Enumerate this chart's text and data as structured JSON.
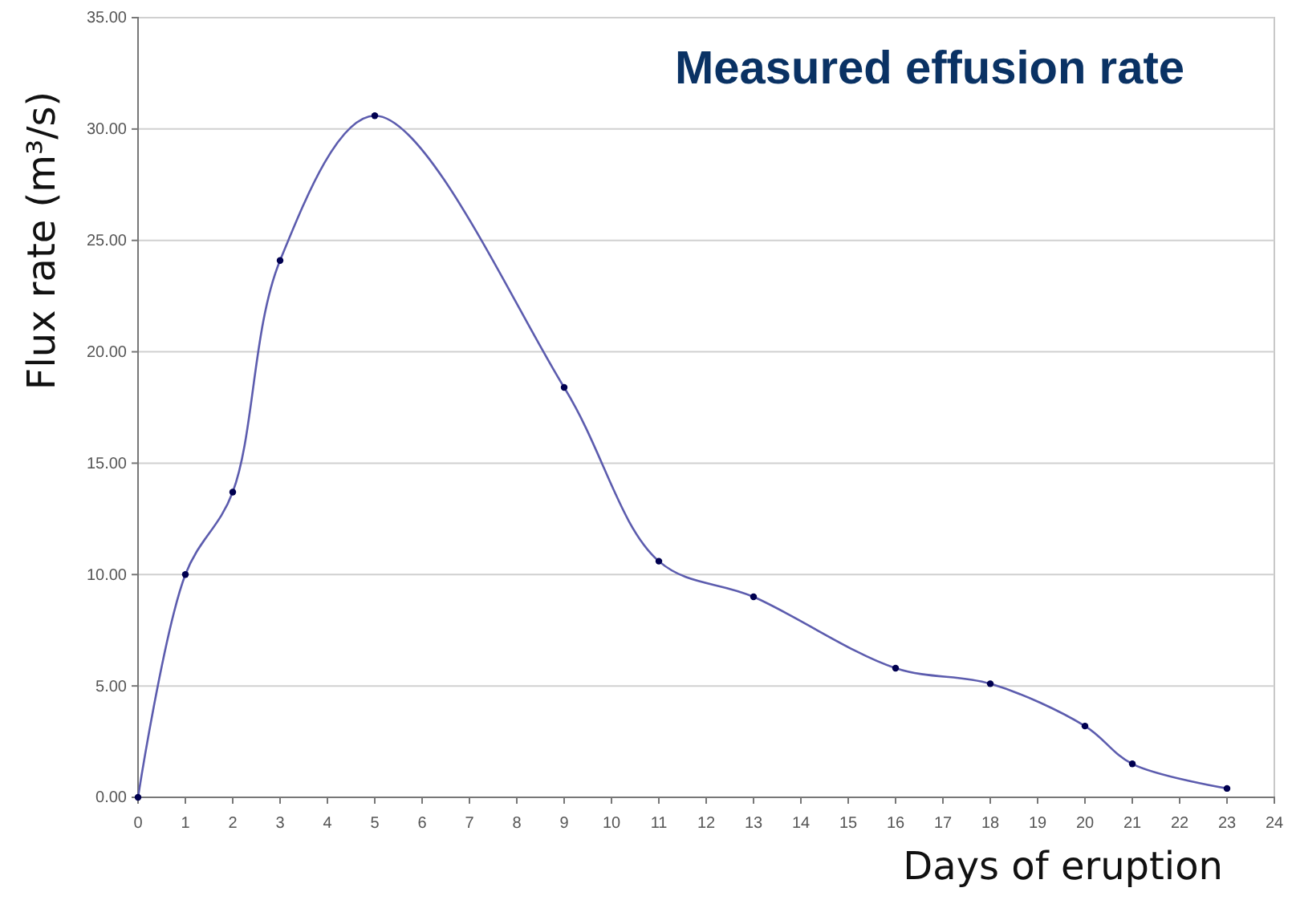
{
  "chart_data": {
    "type": "line",
    "title": "Measured effusion rate",
    "xlabel": "Days of eruption",
    "ylabel": "Flux rate (m³/s)",
    "x": [
      0,
      1,
      2,
      3,
      5,
      9,
      11,
      13,
      16,
      18,
      20,
      21,
      23
    ],
    "series": [
      {
        "color": "#5c5cae",
        "values": [
          0,
          10.0,
          13.7,
          24.1,
          30.6,
          18.4,
          10.6,
          9.0,
          5.8,
          5.1,
          3.2,
          1.5,
          0.4
        ]
      }
    ],
    "xlim": [
      0,
      24
    ],
    "xticks": [
      0,
      1,
      2,
      3,
      4,
      5,
      6,
      7,
      8,
      9,
      10,
      11,
      12,
      13,
      14,
      15,
      16,
      17,
      18,
      19,
      20,
      21,
      22,
      23,
      24
    ],
    "ylim": [
      0,
      35
    ],
    "yticks": [
      {
        "value": 0,
        "label": "0.00"
      },
      {
        "value": 5,
        "label": "5.00"
      },
      {
        "value": 10,
        "label": "10.00"
      },
      {
        "value": 15,
        "label": "15.00"
      },
      {
        "value": 20,
        "label": "20.00"
      },
      {
        "value": 25,
        "label": "25.00"
      },
      {
        "value": 30,
        "label": "30.00"
      },
      {
        "value": 35,
        "label": "35.00"
      }
    ],
    "grid": "y",
    "marker": "circle",
    "line_style": "solid"
  }
}
